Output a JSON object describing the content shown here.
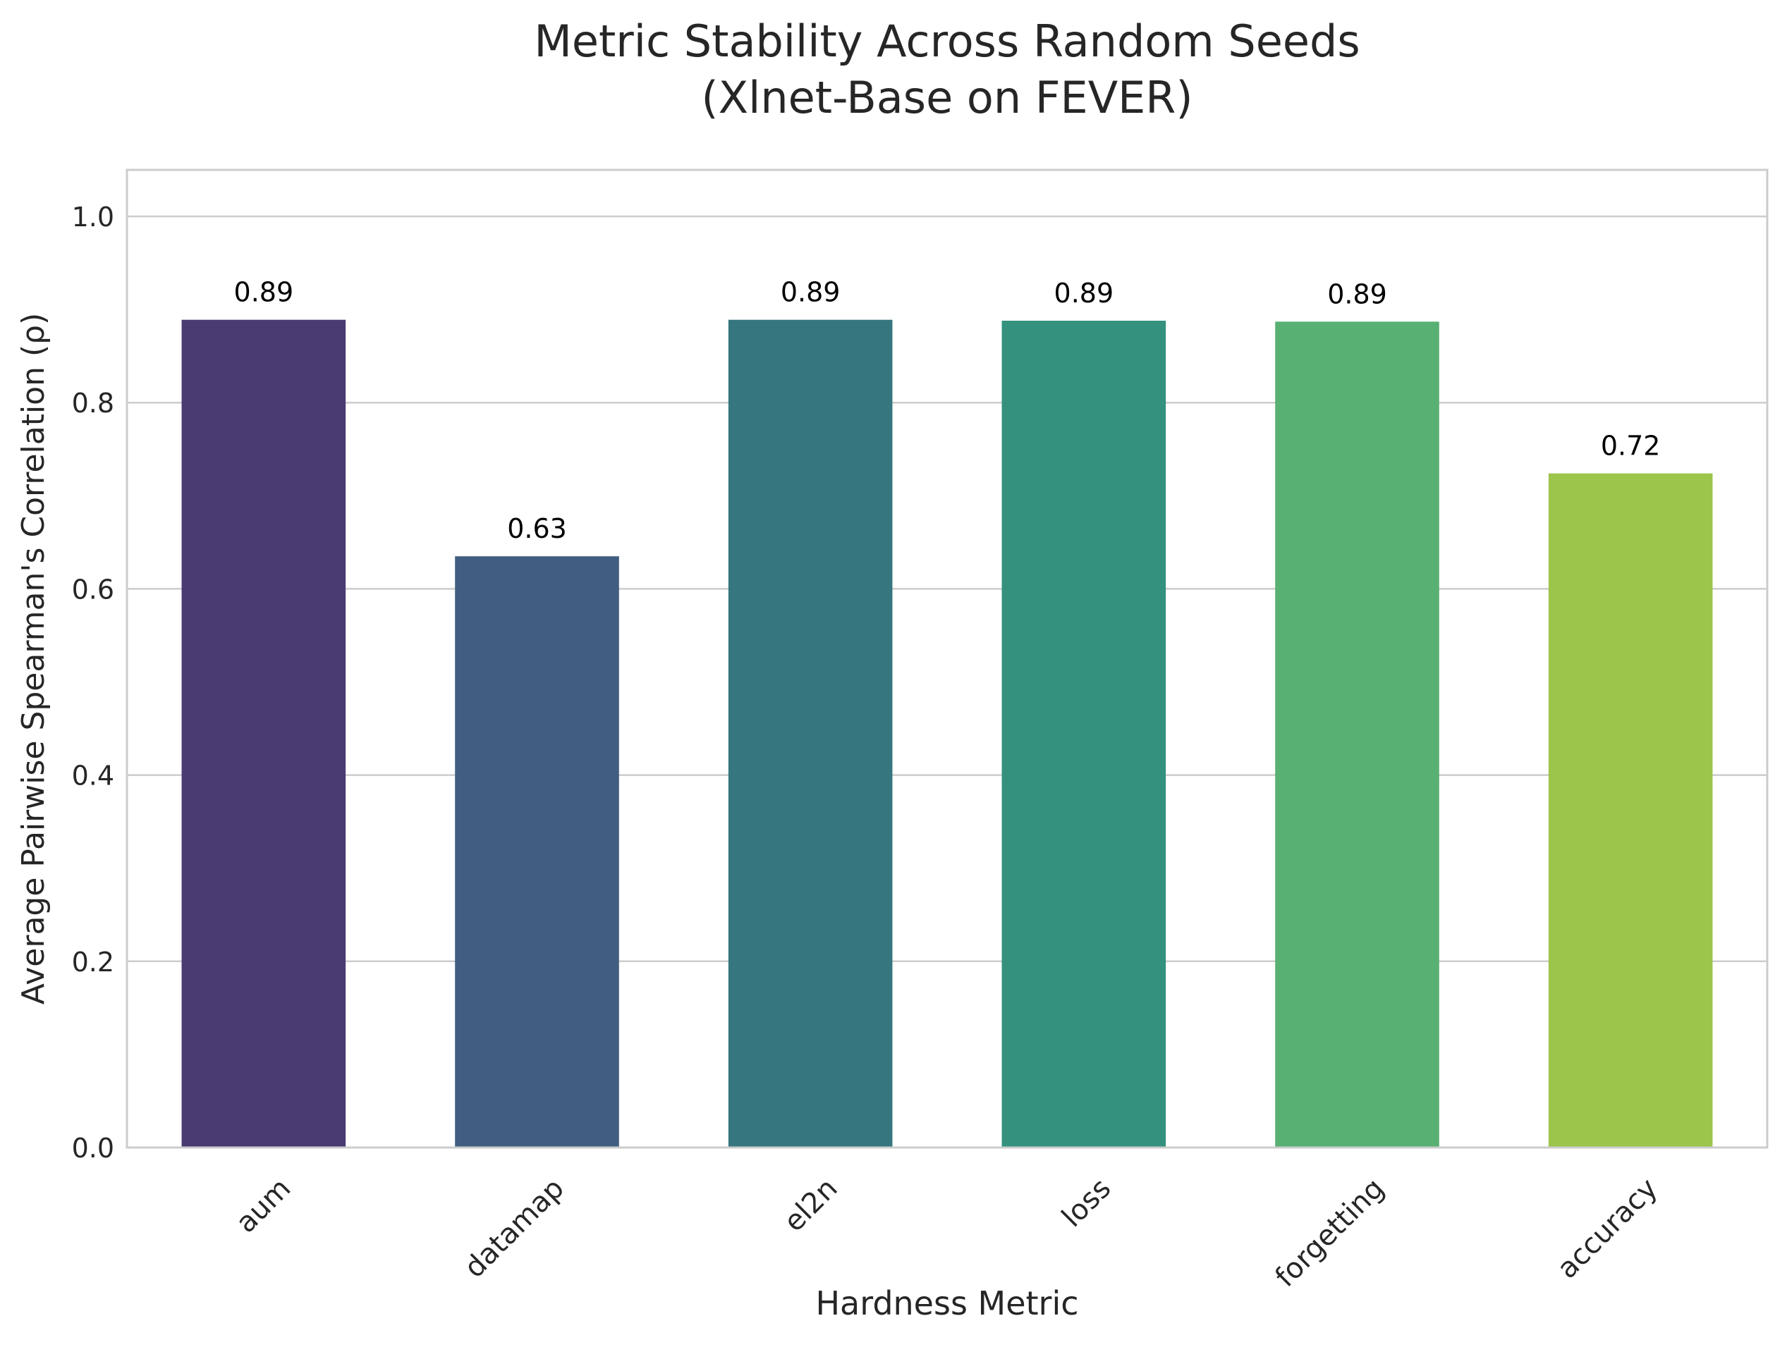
{
  "chart_data": {
    "type": "bar",
    "title_lines": [
      "Metric Stability Across Random Seeds",
      "(Xlnet-Base on FEVER)"
    ],
    "xlabel": "Hardness Metric",
    "ylabel": "Average Pairwise Spearman's Correlation (ρ)",
    "categories": [
      "aum",
      "datamap",
      "el2n",
      "loss",
      "forgetting",
      "accuracy"
    ],
    "values": [
      0.889,
      0.635,
      0.889,
      0.888,
      0.887,
      0.724
    ],
    "value_labels": [
      "0.89",
      "0.63",
      "0.89",
      "0.89",
      "0.89",
      "0.72"
    ],
    "colors": [
      "#4a3b72",
      "#415e80",
      "#36767f",
      "#33917d",
      "#59b073",
      "#9bc54b"
    ],
    "ylim": [
      0,
      1.05
    ],
    "yticks": [
      0.0,
      0.2,
      0.4,
      0.6,
      0.8,
      1.0
    ],
    "ytick_labels": [
      "0.0",
      "0.2",
      "0.4",
      "0.6",
      "0.8",
      "1.0"
    ],
    "grid": "horizontal",
    "legend": "none"
  }
}
